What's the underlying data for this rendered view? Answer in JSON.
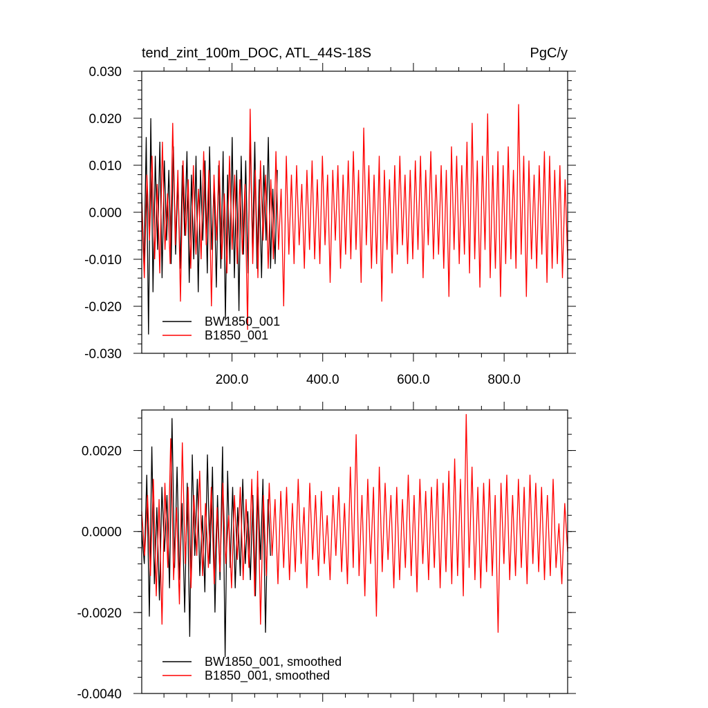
{
  "chart_data": [
    {
      "type": "line",
      "title": "tend_zint_100m_DOC, ATL_44S-18S",
      "units": "PgC/y",
      "xlim": [
        1,
        940
      ],
      "ylim": [
        -0.03,
        0.03
      ],
      "xticks": [
        200,
        400,
        600,
        800
      ],
      "xtick_labels": [
        "200.0",
        "400.0",
        "600.0",
        "800.0"
      ],
      "yticks": [
        -0.03,
        -0.02,
        -0.01,
        0.0,
        0.01,
        0.02,
        0.03
      ],
      "ytick_labels": [
        "-0.030",
        "-0.020",
        "-0.010",
        "0.000",
        "0.010",
        "0.020",
        "0.030"
      ],
      "legend_position": "bottom-left",
      "series": [
        {
          "name": "BW1850_001",
          "color": "#000000",
          "x_start": 1,
          "x_end": 300,
          "values": [
            0.004,
            -0.012,
            0.016,
            -0.026,
            0.02,
            -0.017,
            0.012,
            -0.008,
            0.015,
            -0.014,
            0.011,
            -0.006,
            0.009,
            -0.011,
            0.014,
            -0.009,
            0.007,
            -0.012,
            0.01,
            -0.005,
            0.013,
            -0.015,
            0.008,
            -0.01,
            0.012,
            -0.017,
            0.009,
            -0.006,
            0.011,
            -0.013,
            0.014,
            -0.008,
            0.006,
            -0.016,
            0.01,
            -0.012,
            0.013,
            -0.023,
            0.008,
            -0.011,
            0.016,
            -0.014,
            0.009,
            -0.021,
            0.012,
            -0.009,
            0.011,
            -0.013,
            0.017,
            -0.008,
            0.015,
            -0.012,
            0.007,
            -0.014,
            0.01,
            -0.006,
            0.016,
            -0.012,
            0.005,
            -0.011,
            0.009
          ]
        },
        {
          "name": "B1850_001",
          "color": "#ff0000",
          "x_start": 1,
          "x_end": 940,
          "values": [
            0.002,
            -0.014,
            0.008,
            -0.006,
            0.012,
            -0.01,
            0.006,
            -0.013,
            0.015,
            -0.008,
            0.004,
            -0.011,
            0.019,
            -0.007,
            0.009,
            -0.019,
            0.011,
            -0.005,
            0.007,
            -0.012,
            0.01,
            -0.009,
            0.005,
            -0.01,
            0.013,
            -0.007,
            0.009,
            -0.02,
            0.008,
            -0.006,
            0.011,
            -0.01,
            0.004,
            -0.013,
            0.012,
            -0.008,
            0.008,
            -0.011,
            0.007,
            -0.009,
            0.006,
            -0.025,
            0.022,
            -0.011,
            0.009,
            -0.014,
            0.011,
            -0.006,
            0.008,
            -0.012,
            0.007,
            -0.01,
            0.013,
            -0.008,
            0.005,
            -0.02,
            0.012,
            -0.009,
            0.008,
            -0.011,
            0.01,
            -0.007,
            0.006,
            -0.012,
            0.009,
            -0.008,
            0.011,
            -0.01,
            0.007,
            -0.011,
            0.012,
            -0.007,
            0.008,
            -0.015,
            0.009,
            -0.006,
            0.01,
            -0.012,
            0.008,
            -0.009,
            0.011,
            -0.01,
            0.013,
            -0.008,
            0.009,
            -0.015,
            0.018,
            -0.007,
            0.01,
            -0.012,
            0.008,
            -0.011,
            0.012,
            -0.019,
            0.009,
            -0.008,
            0.007,
            -0.013,
            0.01,
            -0.009,
            0.012,
            -0.007,
            0.008,
            -0.011,
            0.009,
            -0.01,
            0.011,
            -0.008,
            0.012,
            -0.014,
            0.009,
            -0.007,
            0.013,
            -0.01,
            0.008,
            -0.009,
            0.01,
            -0.012,
            0.009,
            -0.018,
            0.014,
            -0.008,
            0.012,
            -0.011,
            0.01,
            -0.009,
            0.015,
            -0.013,
            0.019,
            -0.01,
            0.011,
            -0.016,
            0.012,
            -0.008,
            0.021,
            -0.014,
            0.01,
            -0.012,
            0.013,
            -0.018,
            0.01,
            -0.011,
            0.014,
            -0.01,
            0.009,
            -0.012,
            0.023,
            -0.009,
            0.012,
            -0.018,
            0.011,
            -0.01,
            0.008,
            -0.012,
            0.01,
            -0.009,
            0.013,
            -0.015,
            0.012,
            -0.012,
            0.009,
            -0.011,
            0.01,
            -0.014,
            0.007,
            -0.01
          ]
        }
      ]
    },
    {
      "type": "line",
      "xlim": [
        1,
        940
      ],
      "ylim": [
        -0.004,
        0.003
      ],
      "xticks": [
        200,
        400,
        600,
        800
      ],
      "yticks": [
        -0.004,
        -0.002,
        0.0,
        0.002
      ],
      "ytick_labels": [
        "-0.0040",
        "-0.0020",
        "0.0000",
        "0.0020"
      ],
      "legend_position": "bottom-left",
      "series": [
        {
          "name": "BW1850_001, smoothed",
          "color": "#000000",
          "x_start": 1,
          "x_end": 285,
          "values": [
            0.0,
            -0.0008,
            0.0014,
            -0.0021,
            0.0021,
            -0.0013,
            0.0006,
            -0.0017,
            0.0011,
            -0.0005,
            0.0009,
            -0.0014,
            0.0028,
            -0.0009,
            0.0016,
            -0.0012,
            0.0007,
            -0.002,
            0.0012,
            -0.0026,
            0.0019,
            -0.0006,
            0.0013,
            -0.0011,
            0.0004,
            -0.0015,
            0.0019,
            -0.0008,
            0.0016,
            -0.002,
            0.0009,
            -0.0012,
            0.0021,
            -0.0031,
            0.0015,
            -0.0009,
            0.0011,
            -0.0014,
            0.0006,
            -0.0011,
            0.0013,
            -0.0008,
            0.0005,
            -0.0012,
            0.0009,
            -0.0016,
            0.0011,
            -0.0007,
            0.0013,
            -0.0025,
            0.0008,
            -0.0006
          ]
        },
        {
          "name": "B1850_001, smoothed",
          "color": "#ff0000",
          "x_start": 1,
          "x_end": 940,
          "values": [
            0.0005,
            -0.0006,
            0.0009,
            -0.0011,
            0.0013,
            -0.0016,
            0.0008,
            -0.0023,
            0.0012,
            -0.0009,
            0.0023,
            -0.0012,
            0.0006,
            -0.0018,
            0.0022,
            -0.0008,
            0.0011,
            -0.0014,
            0.0009,
            -0.0006,
            0.0015,
            -0.0011,
            0.0007,
            -0.0009,
            0.0011,
            -0.0013,
            0.0006,
            -0.001,
            0.0012,
            -0.0008,
            0.0004,
            -0.0014,
            0.0009,
            -0.0007,
            0.0011,
            -0.0012,
            0.0008,
            -0.0009,
            0.0013,
            -0.0016,
            0.0015,
            -0.0023,
            0.0009,
            -0.0011,
            0.0012,
            -0.0006,
            0.0008,
            -0.0013,
            0.001,
            -0.0009,
            0.0011,
            -0.0012,
            0.0007,
            -0.001,
            0.0013,
            -0.0008,
            0.0006,
            -0.0014,
            0.0012,
            -0.0007,
            0.0009,
            -0.0011,
            0.001,
            -0.0008,
            0.0004,
            -0.0012,
            0.0009,
            -0.0006,
            0.0011,
            -0.001,
            0.0007,
            -0.0013,
            0.0016,
            -0.0009,
            0.0024,
            -0.0011,
            0.0009,
            -0.0016,
            0.0013,
            -0.0008,
            0.0011,
            -0.0021,
            0.0016,
            -0.001,
            0.0012,
            -0.0007,
            0.0009,
            -0.0014,
            0.0011,
            -0.0012,
            0.0008,
            -0.0009,
            0.0014,
            -0.0011,
            0.0009,
            -0.0015,
            0.0013,
            -0.0008,
            0.001,
            -0.0012,
            0.0011,
            -0.0009,
            0.0013,
            -0.0014,
            0.0012,
            -0.001,
            0.0015,
            -0.0013,
            0.0018,
            -0.0011,
            0.0013,
            -0.0016,
            0.0029,
            -0.0009,
            0.0016,
            -0.0012,
            0.0011,
            -0.0014,
            0.0012,
            -0.001,
            0.0013,
            -0.0011,
            0.0009,
            -0.0025,
            0.0012,
            -0.0008,
            0.0014,
            -0.0012,
            0.0009,
            -0.0011,
            0.0013,
            -0.0009,
            0.0011,
            -0.0013,
            0.0014,
            -0.0008,
            0.0012,
            -0.001,
            0.0011,
            -0.0012,
            0.0009,
            -0.0011,
            0.0013,
            -0.0009,
            0.0002,
            -0.0013,
            0.0007,
            -0.0005
          ]
        }
      ]
    }
  ]
}
